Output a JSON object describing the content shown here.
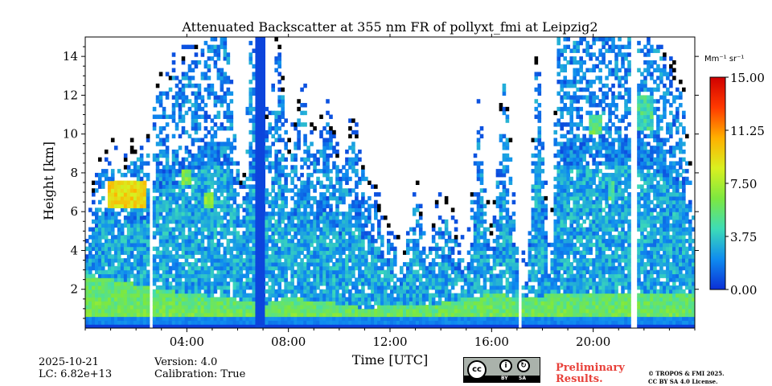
{
  "chart_data": {
    "type": "heatmap",
    "title": "Attenuated Backscatter at 355 nm FR of pollyxt_fmi at Leipzig2",
    "xlabel": "Time [UTC]",
    "ylabel": "Height [km]",
    "xlim_hours": [
      0,
      24
    ],
    "ylim_km": [
      0,
      15
    ],
    "x_ticks": [
      "04:00",
      "08:00",
      "12:00",
      "16:00",
      "20:00"
    ],
    "x_tick_hours": [
      4,
      8,
      12,
      16,
      20
    ],
    "y_ticks": [
      2,
      4,
      6,
      8,
      10,
      12,
      14
    ],
    "colorbar": {
      "unit": "Mm⁻¹ sr⁻¹",
      "range": [
        0,
        15
      ],
      "ticks": [
        "0.00",
        "3.75",
        "7.50",
        "11.25",
        "15.00"
      ],
      "tick_values": [
        0,
        3.75,
        7.5,
        11.25,
        15
      ],
      "colormap": [
        "#0b2fd6",
        "#0f8cf0",
        "#3ddcb7",
        "#7de840",
        "#d9f020",
        "#ffb000",
        "#ff3a00",
        "#d00000"
      ]
    },
    "gaps_hours": [
      [
        2.48,
        2.62
      ],
      [
        17.05,
        17.18
      ],
      [
        21.52,
        21.68
      ]
    ],
    "no_signal_hours": [
      [
        6.65,
        6.9
      ],
      [
        6.98,
        7.05
      ]
    ],
    "cloud_top_profile_km": [
      [
        0.0,
        4.0
      ],
      [
        0.5,
        8.0
      ],
      [
        1.0,
        8.6
      ],
      [
        1.5,
        8.0
      ],
      [
        2.0,
        8.9
      ],
      [
        2.4,
        9.0
      ],
      [
        2.8,
        12.0
      ],
      [
        3.5,
        13.0
      ],
      [
        4.0,
        13.5
      ],
      [
        4.5,
        14.5
      ],
      [
        5.0,
        15.0
      ],
      [
        5.6,
        15.0
      ],
      [
        6.2,
        6.0
      ],
      [
        6.5,
        15.0
      ],
      [
        7.2,
        10.0
      ],
      [
        7.6,
        15.0
      ],
      [
        8.0,
        8.5
      ],
      [
        8.6,
        12.0
      ],
      [
        9.0,
        9.0
      ],
      [
        9.5,
        11.0
      ],
      [
        10.0,
        8.0
      ],
      [
        10.5,
        10.0
      ],
      [
        11.0,
        8.0
      ],
      [
        11.5,
        6.0
      ],
      [
        12.0,
        4.5
      ],
      [
        12.5,
        3.0
      ],
      [
        13.0,
        7.0
      ],
      [
        13.5,
        4.0
      ],
      [
        14.0,
        6.0
      ],
      [
        14.5,
        5.0
      ],
      [
        15.0,
        3.0
      ],
      [
        15.5,
        11.0
      ],
      [
        16.0,
        4.0
      ],
      [
        16.5,
        13.0
      ],
      [
        17.0,
        4.0
      ],
      [
        17.4,
        2.0
      ],
      [
        17.8,
        15.0
      ],
      [
        18.3,
        2.0
      ],
      [
        18.6,
        15.0
      ],
      [
        20.0,
        15.0
      ],
      [
        21.0,
        15.0
      ],
      [
        21.4,
        15.0
      ],
      [
        21.8,
        15.0
      ],
      [
        22.5,
        14.5
      ],
      [
        23.0,
        13.0
      ],
      [
        23.5,
        12.0
      ],
      [
        24.0,
        5.0
      ]
    ],
    "elevated_layers": [
      {
        "t0": 0.9,
        "t1": 2.4,
        "h0": 6.2,
        "h1": 7.6,
        "value": 9.5
      },
      {
        "t0": 3.8,
        "t1": 4.2,
        "h0": 7.5,
        "h1": 8.2,
        "value": 6.0
      },
      {
        "t0": 4.7,
        "t1": 5.0,
        "h0": 6.2,
        "h1": 7.0,
        "value": 6.5
      },
      {
        "t0": 19.8,
        "t1": 20.4,
        "h0": 10.0,
        "h1": 11.0,
        "value": 5.5
      },
      {
        "t0": 21.7,
        "t1": 22.3,
        "h0": 10.2,
        "h1": 12.0,
        "value": 4.5
      },
      {
        "t0": 20.6,
        "t1": 20.9,
        "h0": 6.6,
        "h1": 7.6,
        "value": 5.0
      }
    ],
    "boundary_layer_top_km": [
      [
        0.0,
        2.8
      ],
      [
        3.0,
        2.0
      ],
      [
        6.0,
        1.5
      ],
      [
        7.0,
        1.2
      ],
      [
        8.0,
        1.6
      ],
      [
        10.5,
        1.2
      ],
      [
        11.0,
        1.0
      ],
      [
        12.0,
        1.2
      ],
      [
        14.0,
        1.3
      ],
      [
        16.0,
        1.8
      ],
      [
        17.0,
        1.6
      ],
      [
        18.0,
        1.7
      ],
      [
        20.0,
        1.8
      ],
      [
        24.0,
        1.7
      ]
    ]
  },
  "footer": {
    "date": "2025-10-21",
    "lc": "LC: 6.82e+13",
    "version": "Version: 4.0",
    "calibration": "Calibration: True",
    "preliminary_line1": "Preliminary",
    "preliminary_line2": "Results.",
    "copyright_line1": "© TROPOS & FMI 2025.",
    "copyright_line2": "CC BY SA 4.0 License.",
    "license_badge": {
      "cc": "cc",
      "by": "BY",
      "sa": "SA"
    }
  }
}
